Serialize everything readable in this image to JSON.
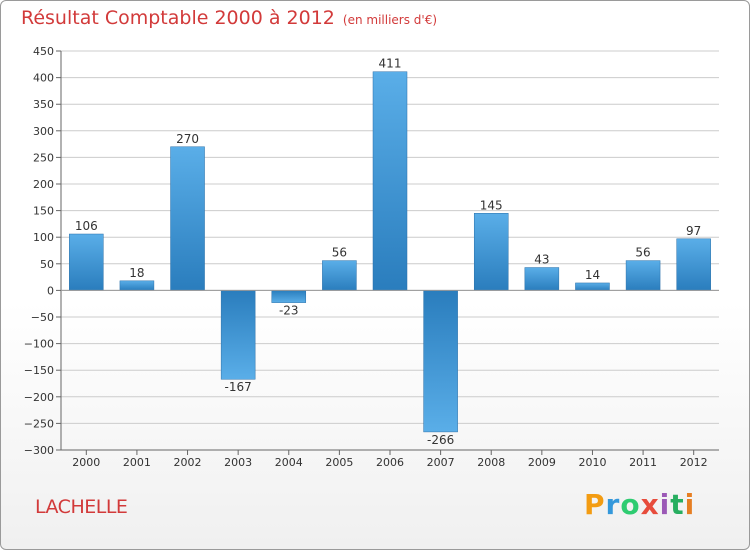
{
  "title": "Résultat Comptable 2000 à 2012",
  "subtitle": "(en milliers d'€)",
  "place": "LACHELLE",
  "logo": {
    "letters": [
      "P",
      "r",
      "o",
      "x",
      "i",
      "t",
      "i"
    ],
    "colors": [
      "#f39c12",
      "#3498db",
      "#2ecc71",
      "#e74c3c",
      "#9b59b6",
      "#27ae60",
      "#e67e22"
    ]
  },
  "chart_data": {
    "type": "bar",
    "categories": [
      "2000",
      "2001",
      "2002",
      "2003",
      "2004",
      "2005",
      "2006",
      "2007",
      "2008",
      "2009",
      "2010",
      "2011",
      "2012"
    ],
    "values": [
      106,
      18,
      270,
      -167,
      -23,
      56,
      411,
      -266,
      145,
      43,
      14,
      56,
      97
    ],
    "title": "Résultat Comptable 2000 à 2012",
    "ylabel": "(en milliers d'€)",
    "ylim": [
      -300,
      450
    ],
    "yticks": [
      450,
      400,
      350,
      300,
      250,
      200,
      150,
      100,
      50,
      0,
      -50,
      -100,
      -150,
      -200,
      -250,
      -300
    ],
    "grid": true,
    "colors": {
      "bar_light": "#5aaee8",
      "bar_dark": "#2a7dbd",
      "grid": "#cccccc"
    }
  }
}
